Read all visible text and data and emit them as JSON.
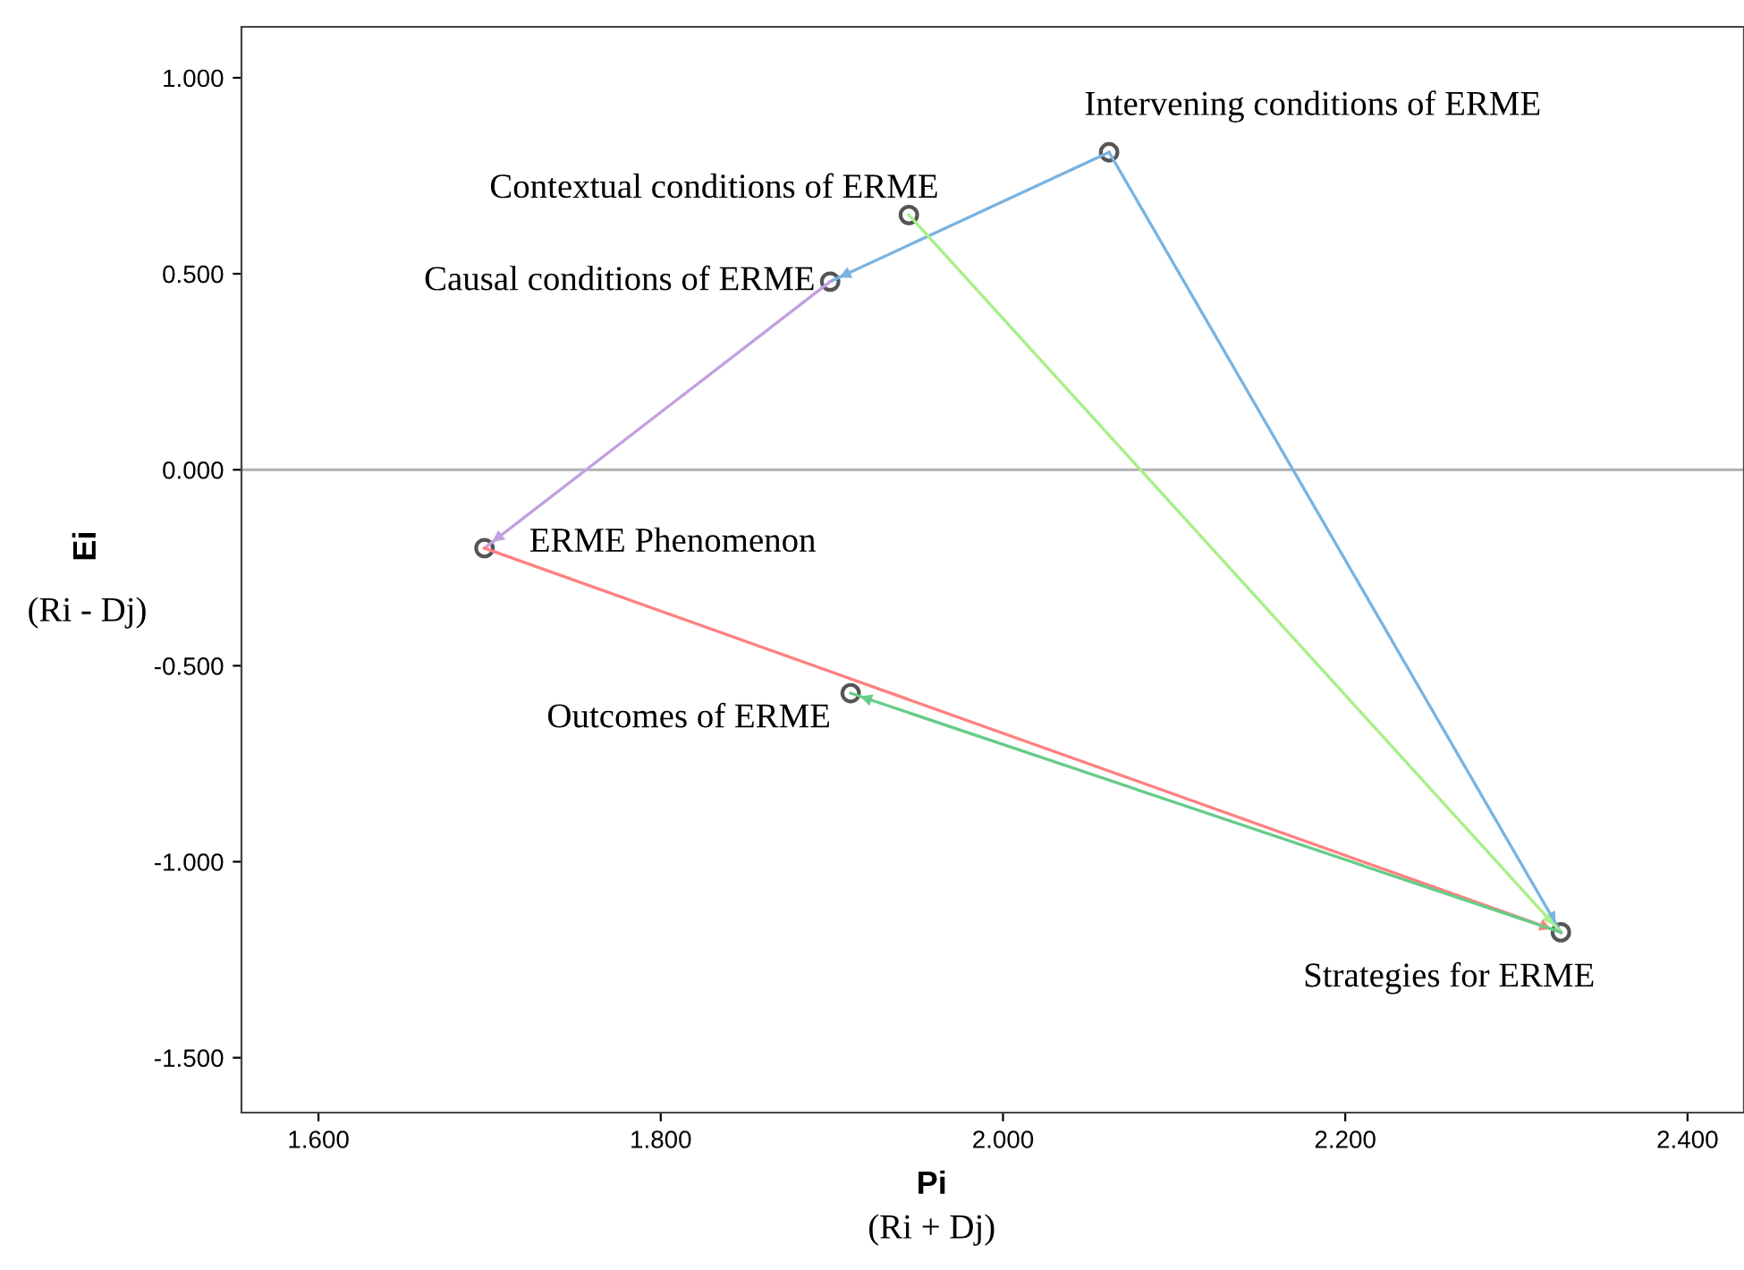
{
  "chart_data": {
    "type": "scatter",
    "xlabel": "Pi\n(Ri + Dj)",
    "ylabel": "Ei\n(Ri - Dj)",
    "xlim": [
      1.555,
      2.433
    ],
    "ylim": [
      -1.64,
      1.13
    ],
    "xticks": [
      {
        "value": 1.6,
        "label": "1.600"
      },
      {
        "value": 1.8,
        "label": "1.800"
      },
      {
        "value": 2.0,
        "label": "2.000"
      },
      {
        "value": 2.2,
        "label": "2.200"
      },
      {
        "value": 2.4,
        "label": "2.400"
      }
    ],
    "yticks": [
      {
        "value": -1.5,
        "label": "-1.500"
      },
      {
        "value": -1.0,
        "label": "-1.000"
      },
      {
        "value": -0.5,
        "label": "-0.500"
      },
      {
        "value": 0,
        "label": "0.000"
      },
      {
        "value": 0.5,
        "label": "0.500"
      },
      {
        "value": 1.0,
        "label": "1.000"
      }
    ],
    "grid": false,
    "legend": false,
    "ref_lines": [
      {
        "axis": "y",
        "value": 0,
        "color": "#b0b0b0"
      }
    ],
    "series": [
      {
        "type": "line",
        "color": "#7ab3e0",
        "x": [
          2.062,
          1.899
        ],
        "values": [
          0.81,
          0.48
        ]
      },
      {
        "type": "line",
        "color": "#7ab3e0",
        "x": [
          2.062,
          2.326
        ],
        "values": [
          0.81,
          -1.18
        ]
      },
      {
        "type": "line",
        "color": "#a8f08a",
        "x": [
          1.945,
          2.326
        ],
        "values": [
          0.65,
          -1.18
        ]
      },
      {
        "type": "line",
        "color": "#c3a0e0",
        "x": [
          1.899,
          1.697
        ],
        "values": [
          0.48,
          -0.2
        ]
      },
      {
        "type": "line",
        "color": "#ff8080",
        "x": [
          1.697,
          2.326
        ],
        "values": [
          -0.2,
          -1.18
        ]
      },
      {
        "type": "line",
        "color": "#66cc88",
        "x": [
          2.326,
          1.911
        ],
        "values": [
          -1.18,
          -0.57
        ]
      },
      {
        "type": "scatter",
        "marker": "circle",
        "color": "#555555",
        "x": [
          2.062,
          1.945,
          1.899,
          1.697,
          1.911,
          2.326
        ],
        "values": [
          0.81,
          0.65,
          0.48,
          -0.2,
          -0.57,
          -1.18
        ]
      }
    ],
    "annotations": [
      {
        "text": "Intervening conditions of ERME",
        "x": 2.062,
        "y": 0.81
      },
      {
        "text": "Contextual conditions of ERME",
        "x": 1.945,
        "y": 0.65
      },
      {
        "text": "Causal conditions of ERME",
        "x": 1.899,
        "y": 0.48
      },
      {
        "text": "ERME Phenomenon",
        "x": 1.697,
        "y": -0.2
      },
      {
        "text": "Outcomes of ERME",
        "x": 1.911,
        "y": -0.57
      },
      {
        "text": "Strategies for ERME",
        "x": 2.326,
        "y": -1.18
      }
    ]
  }
}
